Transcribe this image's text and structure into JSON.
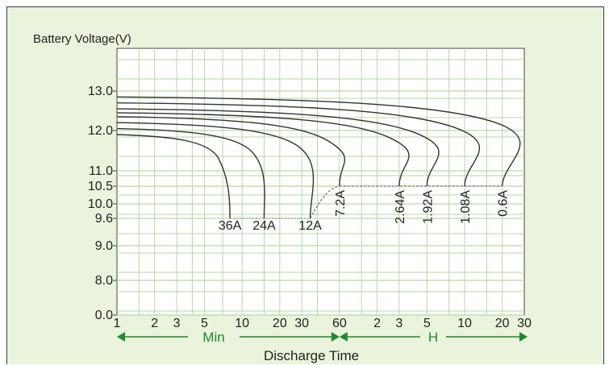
{
  "chart_data": {
    "type": "line",
    "ylabel": "Battery Voltage(V)",
    "xlabel": "Discharge Time",
    "y_ticks": [
      "13.0",
      "12.0",
      "11.0",
      "10.5",
      "10.0",
      "9.6",
      "9.0",
      "8.0",
      "0.0"
    ],
    "x_ticks_min": [
      "1",
      "2",
      "3",
      "5",
      "10",
      "20",
      "30",
      "60"
    ],
    "x_ticks_hour": [
      "2",
      "3",
      "5",
      "10",
      "20",
      "30"
    ],
    "range_min_label": "Min",
    "range_hour_label": "H",
    "grid": true,
    "x_unit_min": "Min",
    "x_unit_hour": "H",
    "cutoff_voltage": 10.5,
    "series": [
      {
        "name": "36A",
        "start_voltage": 11.9,
        "end_time_min": 8,
        "end_voltage": 9.6
      },
      {
        "name": "24A",
        "start_voltage": 12.05,
        "end_time_min": 15,
        "end_voltage": 9.6
      },
      {
        "name": "12A",
        "start_voltage": 12.2,
        "end_time_min": 35,
        "end_voltage": 9.6
      },
      {
        "name": "7.2A",
        "start_voltage": 12.35,
        "end_time_min": 60,
        "end_voltage": 10.5
      },
      {
        "name": "2.64A",
        "start_voltage": 12.45,
        "end_time_min": 180,
        "end_voltage": 10.5
      },
      {
        "name": "1.92A",
        "start_voltage": 12.55,
        "end_time_min": 300,
        "end_voltage": 10.5
      },
      {
        "name": "1.08A",
        "start_voltage": 12.7,
        "end_time_min": 600,
        "end_voltage": 10.5
      },
      {
        "name": "0.6A",
        "start_voltage": 12.85,
        "end_time_min": 1200,
        "end_voltage": 10.5
      }
    ]
  },
  "colors": {
    "background": "#eaf3dc",
    "plot": "#ffffff",
    "grid": "#b6d9a0",
    "curve": "#333333",
    "accent": "#1f8a2e"
  }
}
